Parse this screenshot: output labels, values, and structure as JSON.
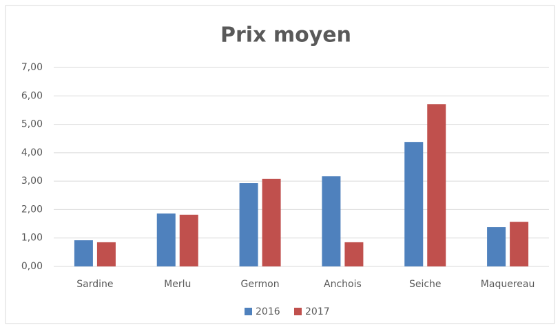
{
  "chart_data": {
    "type": "bar",
    "title": "Prix moyen",
    "categories": [
      "Sardine",
      "Merlu",
      "Germon",
      "Anchois",
      "Seiche",
      "Maquereau"
    ],
    "series": [
      {
        "name": "2016",
        "color": "#4f81bd",
        "values": [
          0.92,
          1.86,
          2.93,
          3.17,
          4.38,
          1.38
        ]
      },
      {
        "name": "2017",
        "color": "#c0504d",
        "values": [
          0.85,
          1.82,
          3.08,
          0.85,
          5.71,
          1.57
        ]
      }
    ],
    "ylim": [
      0,
      7
    ],
    "yticks": [
      {
        "value": 0,
        "label": "0,00"
      },
      {
        "value": 1,
        "label": "1,00"
      },
      {
        "value": 2,
        "label": "2,00"
      },
      {
        "value": 3,
        "label": "3,00"
      },
      {
        "value": 4,
        "label": "4,00"
      },
      {
        "value": 5,
        "label": "5,00"
      },
      {
        "value": 6,
        "label": "6,00"
      },
      {
        "value": 7,
        "label": "7,00"
      }
    ],
    "grid": true,
    "legend": "bottom"
  }
}
